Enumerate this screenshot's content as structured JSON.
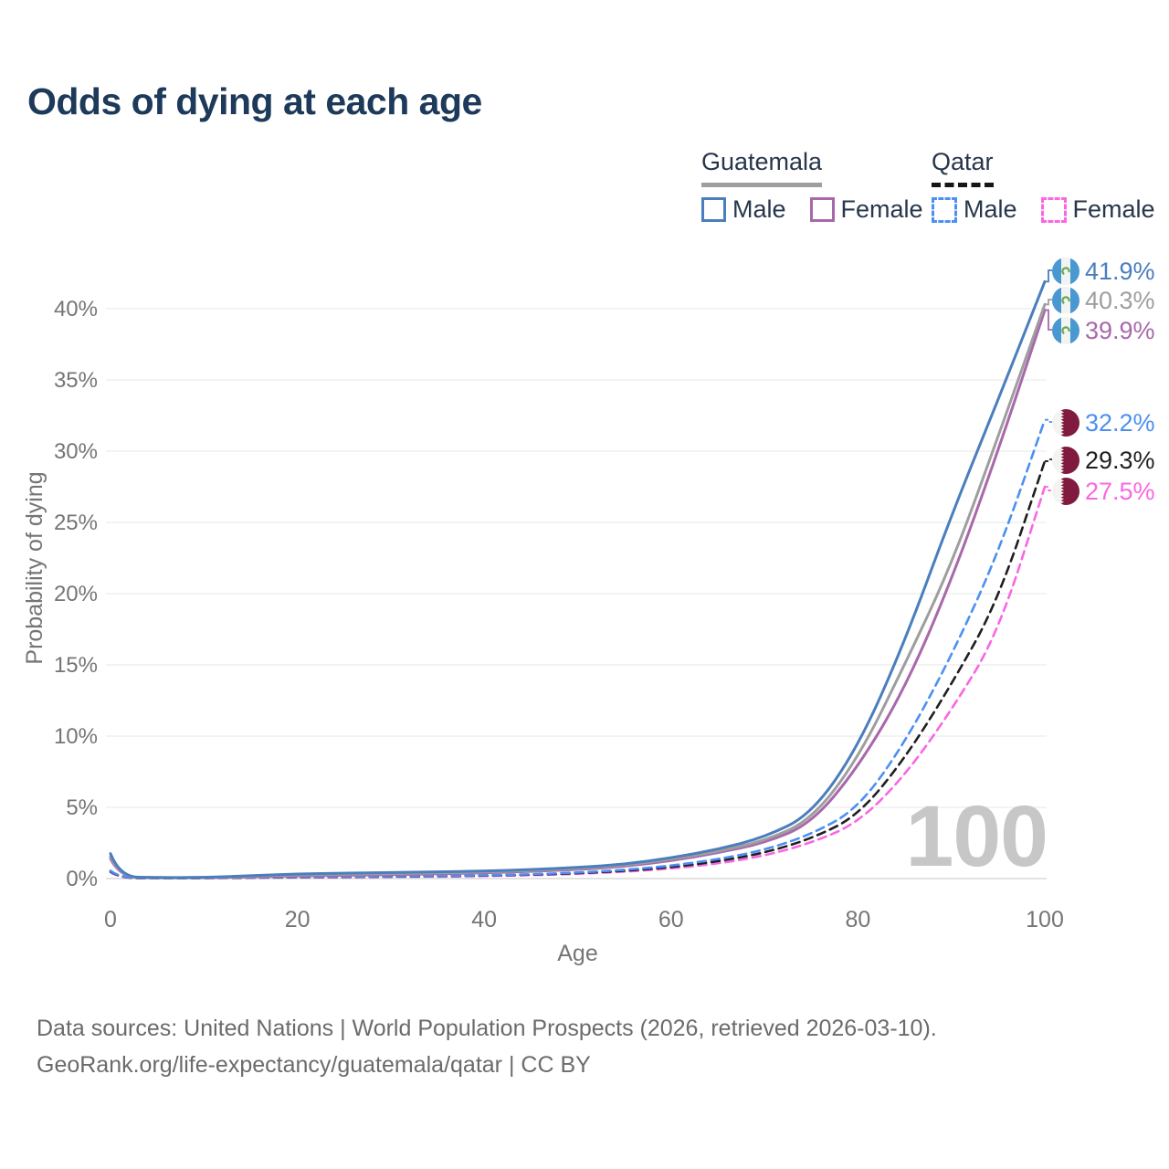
{
  "title": "Odds of dying at each age",
  "legend": {
    "groups": [
      {
        "country": "Guatemala",
        "line_style": "solid",
        "line_color": "#9e9e9e",
        "entries": [
          {
            "label": "Male",
            "color": "#4a7ebd",
            "style": "solid"
          },
          {
            "label": "Female",
            "color": "#a968ab",
            "style": "solid"
          }
        ]
      },
      {
        "country": "Qatar",
        "line_style": "dashed",
        "line_color": "#161616",
        "entries": [
          {
            "label": "Male",
            "color": "#4b90f2",
            "style": "dashed"
          },
          {
            "label": "Female",
            "color": "#f967e2",
            "style": "dashed"
          }
        ]
      }
    ]
  },
  "chart_data": {
    "type": "line",
    "title": "Odds of dying at each age",
    "xlabel": "Age",
    "ylabel": "Probability of dying",
    "xlim": [
      0,
      100
    ],
    "ylim_percent": [
      0,
      44
    ],
    "grid": "horizontal",
    "legend_position": "top-right",
    "watermark": "100",
    "xticks": [
      0,
      20,
      40,
      60,
      80,
      100
    ],
    "yticks": [
      {
        "value": 0,
        "label": "0%"
      },
      {
        "value": 5,
        "label": "5%"
      },
      {
        "value": 10,
        "label": "10%"
      },
      {
        "value": 15,
        "label": "15%"
      },
      {
        "value": 20,
        "label": "20%"
      },
      {
        "value": 25,
        "label": "25%"
      },
      {
        "value": 30,
        "label": "30%"
      },
      {
        "value": 35,
        "label": "35%"
      },
      {
        "value": 40,
        "label": "40%"
      }
    ],
    "ages": [
      0,
      1,
      5,
      10,
      15,
      20,
      25,
      30,
      35,
      40,
      45,
      50,
      55,
      60,
      65,
      70,
      75,
      80,
      85,
      90,
      95,
      100
    ],
    "series": [
      {
        "name": "Guatemala Male",
        "country": "Guatemala",
        "sex": "Male",
        "flag": "guatemala",
        "color": "#4a7ebd",
        "dash": "solid",
        "end_value": 41.9,
        "end_label": "41.9%",
        "values_percent": [
          1.75,
          0.12,
          0.07,
          0.08,
          0.2,
          0.33,
          0.38,
          0.42,
          0.47,
          0.53,
          0.63,
          0.78,
          1.0,
          1.45,
          2.05,
          2.9,
          4.5,
          9.2,
          16.6,
          25.5,
          33.6,
          41.9
        ]
      },
      {
        "name": "Guatemala Both sexes",
        "country": "Guatemala",
        "sex": "All",
        "flag": "guatemala",
        "color": "#9e9e9e",
        "dash": "solid",
        "end_value": 40.3,
        "end_label": "40.3%",
        "values_percent": [
          1.55,
          0.11,
          0.06,
          0.07,
          0.16,
          0.26,
          0.31,
          0.35,
          0.4,
          0.46,
          0.56,
          0.7,
          0.92,
          1.35,
          1.9,
          2.65,
          4.1,
          8.4,
          15.0,
          22.0,
          31.0,
          40.3
        ]
      },
      {
        "name": "Guatemala Female",
        "country": "Guatemala",
        "sex": "Female",
        "flag": "guatemala",
        "color": "#a968ab",
        "dash": "solid",
        "end_value": 39.9,
        "end_label": "39.9%",
        "values_percent": [
          1.4,
          0.1,
          0.05,
          0.06,
          0.12,
          0.19,
          0.23,
          0.27,
          0.33,
          0.4,
          0.5,
          0.63,
          0.85,
          1.25,
          1.8,
          2.5,
          3.85,
          7.8,
          13.3,
          20.9,
          30.0,
          39.9
        ]
      },
      {
        "name": "Qatar Male",
        "country": "Qatar",
        "sex": "Male",
        "flag": "qatar",
        "color": "#4b90f2",
        "dash": "dashed",
        "end_value": 32.2,
        "end_label": "32.2%",
        "values_percent": [
          0.55,
          0.05,
          0.03,
          0.04,
          0.08,
          0.12,
          0.14,
          0.16,
          0.19,
          0.23,
          0.3,
          0.42,
          0.6,
          0.9,
          1.35,
          2.0,
          3.1,
          4.9,
          9.5,
          15.6,
          22.8,
          32.2
        ]
      },
      {
        "name": "Qatar Both sexes",
        "country": "Qatar",
        "sex": "All",
        "flag": "qatar",
        "color": "#1f1f1f",
        "dash": "dashed",
        "end_value": 29.3,
        "end_label": "29.3%",
        "values_percent": [
          0.5,
          0.04,
          0.03,
          0.03,
          0.07,
          0.1,
          0.12,
          0.14,
          0.17,
          0.21,
          0.27,
          0.38,
          0.54,
          0.8,
          1.2,
          1.8,
          2.8,
          4.4,
          8.4,
          13.6,
          19.5,
          29.3
        ]
      },
      {
        "name": "Qatar Female",
        "country": "Qatar",
        "sex": "Female",
        "flag": "qatar",
        "color": "#f967e2",
        "dash": "dashed",
        "end_value": 27.5,
        "end_label": "27.5%",
        "values_percent": [
          0.45,
          0.04,
          0.02,
          0.03,
          0.05,
          0.08,
          0.1,
          0.12,
          0.15,
          0.18,
          0.24,
          0.33,
          0.48,
          0.7,
          1.05,
          1.6,
          2.5,
          3.9,
          7.2,
          11.8,
          17.2,
          27.5
        ]
      }
    ]
  },
  "footer": {
    "line1": "Data sources: United Nations | World Population Prospects (2026, retrieved 2026-03-10).",
    "line2": "GeoRank.org/life-expectancy/guatemala/qatar | CC BY"
  }
}
